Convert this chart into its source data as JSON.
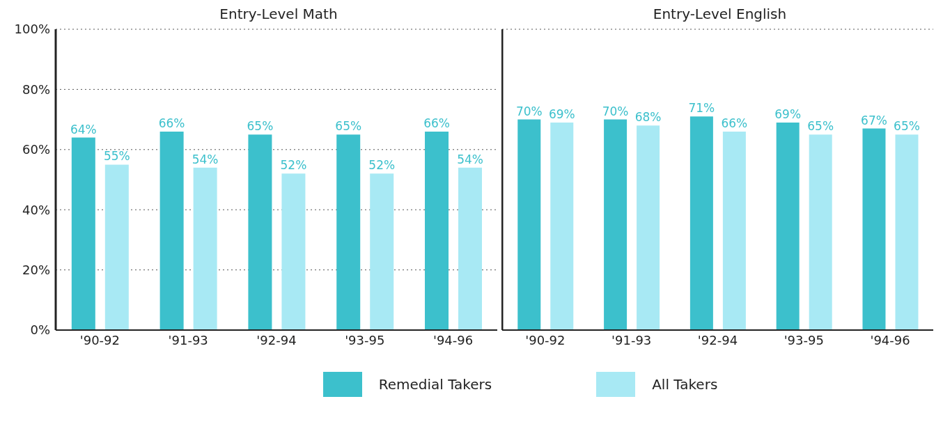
{
  "chart_data": [
    {
      "type": "bar",
      "title": "Entry-Level Math",
      "categories": [
        "'90-92",
        "'91-93",
        "'92-94",
        "'93-95",
        "'94-96"
      ],
      "series": [
        {
          "name": "Remedial Takers",
          "color": "#3cc0cc",
          "values": [
            64,
            66,
            65,
            65,
            66
          ],
          "value_labels": [
            "64%",
            "66%",
            "65%",
            "65%",
            "66%"
          ]
        },
        {
          "name": "All Takers",
          "color": "#a8e9f4",
          "values": [
            55,
            54,
            52,
            52,
            54
          ],
          "value_labels": [
            "55%",
            "54%",
            "52%",
            "52%",
            "54%"
          ]
        }
      ],
      "ylim": [
        0,
        100
      ],
      "yticks": [
        {
          "value": 0,
          "label": "0%"
        },
        {
          "value": 20,
          "label": "20%"
        },
        {
          "value": 40,
          "label": "40%"
        },
        {
          "value": 60,
          "label": "60%"
        },
        {
          "value": 80,
          "label": "80%"
        },
        {
          "value": 100,
          "label": "100%"
        }
      ],
      "grid": "y",
      "legend": "bottom"
    },
    {
      "type": "bar",
      "title": "Entry-Level English",
      "categories": [
        "'90-92",
        "'91-93",
        "'92-94",
        "'93-95",
        "'94-96"
      ],
      "series": [
        {
          "color": "#3cc0cc",
          "values": [
            70,
            70,
            71,
            69,
            67
          ],
          "value_labels": [
            "70%",
            "70%",
            "71%",
            "69%",
            "67%"
          ]
        },
        {
          "color": "#a8e9f4",
          "values": [
            69,
            68,
            66,
            65,
            65
          ],
          "value_labels": [
            "69%",
            "68%",
            "66%",
            "65%",
            "65%"
          ]
        }
      ],
      "ylim": [
        0,
        100
      ],
      "yticks": [
        {
          "value": 0,
          "label": null
        },
        {
          "value": 20,
          "label": null
        },
        {
          "value": 40,
          "label": null
        },
        {
          "value": 60,
          "label": null
        },
        {
          "value": 80,
          "label": null
        },
        {
          "value": 100,
          "label": null
        }
      ],
      "grid": "y",
      "tick_labels": "x"
    }
  ]
}
